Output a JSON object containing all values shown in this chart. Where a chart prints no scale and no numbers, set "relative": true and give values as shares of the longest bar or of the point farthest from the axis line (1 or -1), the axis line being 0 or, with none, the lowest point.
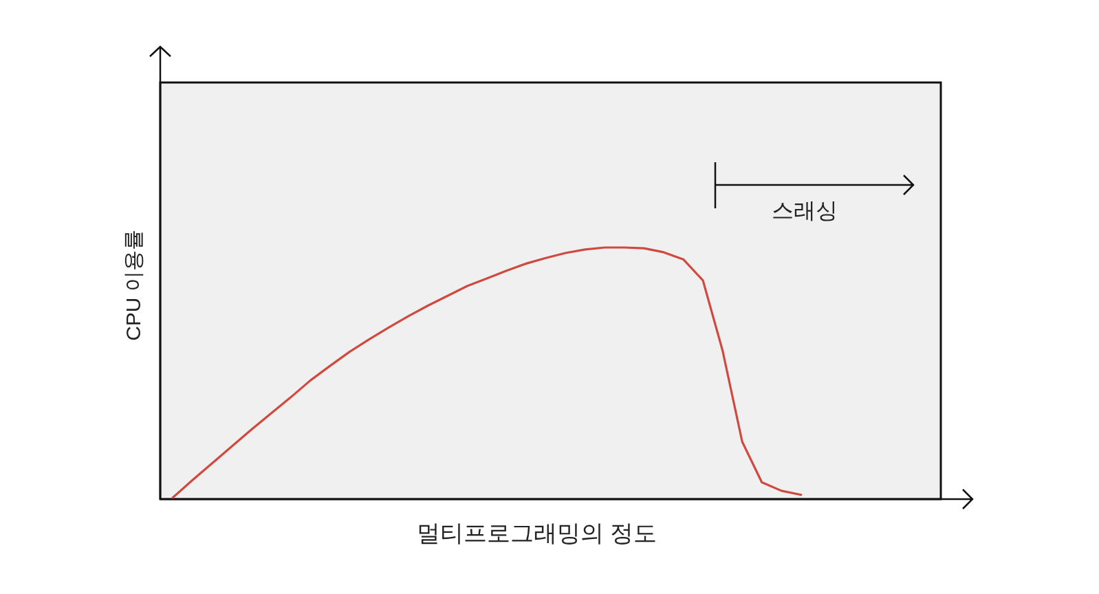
{
  "chart_data": {
    "type": "line",
    "relative": true,
    "xlabel": "멀티프로그래밍의 정도",
    "ylabel": "CPU 이용률",
    "annotations": [
      "스래싱"
    ],
    "categories": [
      null,
      null,
      null,
      null,
      null,
      null,
      null,
      null,
      null,
      null,
      null,
      null,
      null,
      null,
      null,
      null,
      null,
      null,
      null,
      null,
      null,
      null,
      null,
      null,
      null,
      null,
      null,
      null,
      null,
      null,
      null,
      null,
      null
    ],
    "series": [
      {
        "color": "#d0493f",
        "values": [
          0.006,
          0.075,
          0.142,
          0.209,
          0.276,
          0.34,
          0.404,
          0.471,
          0.529,
          0.585,
          0.635,
          0.682,
          0.727,
          0.769,
          0.808,
          0.847,
          0.877,
          0.908,
          0.936,
          0.958,
          0.978,
          0.992,
          1,
          1,
          0.997,
          0.981,
          0.953,
          0.869,
          0.591,
          0.228,
          0.067,
          0.033,
          0.017
        ]
      }
    ],
    "grid": false,
    "marker": "none",
    "line_style": "solid"
  }
}
